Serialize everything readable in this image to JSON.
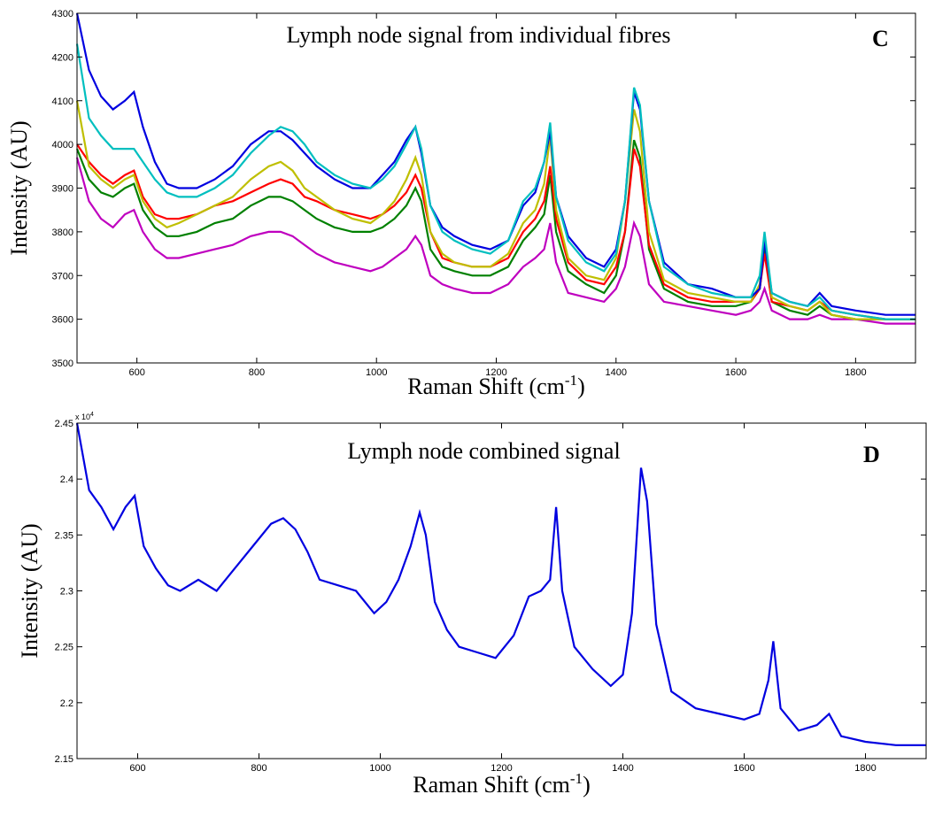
{
  "chart_data": [
    {
      "type": "line",
      "title": "Lymph node signal from individual fibres",
      "annotation": "C",
      "x_label": "Raman Shift (cm",
      "x_label_sup": "-1",
      "x_label_end": ")",
      "y_label": "Intensity (AU)",
      "xlim": [
        500,
        1900
      ],
      "xticks": [
        600,
        800,
        1000,
        1200,
        1400,
        1600,
        1800
      ],
      "ylim": [
        3500,
        4300
      ],
      "yticks": [
        3500,
        3600,
        3700,
        3800,
        3900,
        4000,
        4100,
        4200,
        4300
      ],
      "x": [
        500,
        520,
        540,
        560,
        580,
        595,
        610,
        630,
        650,
        670,
        700,
        730,
        760,
        790,
        820,
        840,
        860,
        880,
        900,
        930,
        960,
        990,
        1010,
        1030,
        1050,
        1065,
        1075,
        1090,
        1110,
        1130,
        1160,
        1190,
        1220,
        1245,
        1265,
        1280,
        1290,
        1300,
        1320,
        1350,
        1380,
        1400,
        1415,
        1430,
        1440,
        1455,
        1480,
        1520,
        1560,
        1600,
        1625,
        1640,
        1648,
        1660,
        1690,
        1720,
        1740,
        1760,
        1800,
        1850,
        1900
      ],
      "series": [
        {
          "color": "#bf00bf",
          "values": [
            3970,
            3870,
            3830,
            3810,
            3840,
            3850,
            3800,
            3760,
            3740,
            3740,
            3750,
            3760,
            3770,
            3790,
            3800,
            3800,
            3790,
            3770,
            3750,
            3730,
            3720,
            3710,
            3720,
            3740,
            3760,
            3790,
            3770,
            3700,
            3680,
            3670,
            3660,
            3660,
            3680,
            3720,
            3740,
            3760,
            3820,
            3730,
            3660,
            3650,
            3640,
            3670,
            3720,
            3820,
            3790,
            3680,
            3640,
            3630,
            3620,
            3610,
            3620,
            3640,
            3670,
            3620,
            3600,
            3600,
            3610,
            3600,
            3600,
            3590,
            3590
          ]
        },
        {
          "color": "#008000",
          "values": [
            3990,
            3920,
            3890,
            3880,
            3900,
            3910,
            3850,
            3810,
            3790,
            3790,
            3800,
            3820,
            3830,
            3860,
            3880,
            3880,
            3870,
            3850,
            3830,
            3810,
            3800,
            3800,
            3810,
            3830,
            3860,
            3900,
            3870,
            3760,
            3720,
            3710,
            3700,
            3700,
            3720,
            3780,
            3810,
            3840,
            3930,
            3800,
            3710,
            3680,
            3660,
            3700,
            3800,
            4010,
            3970,
            3760,
            3670,
            3640,
            3630,
            3630,
            3640,
            3670,
            3760,
            3640,
            3620,
            3610,
            3630,
            3610,
            3600,
            3600,
            3600
          ]
        },
        {
          "color": "#ff0000",
          "values": [
            4000,
            3960,
            3930,
            3910,
            3930,
            3940,
            3880,
            3840,
            3830,
            3830,
            3840,
            3860,
            3870,
            3890,
            3910,
            3920,
            3910,
            3880,
            3870,
            3850,
            3840,
            3830,
            3840,
            3860,
            3890,
            3930,
            3900,
            3800,
            3740,
            3730,
            3720,
            3720,
            3740,
            3800,
            3830,
            3870,
            3950,
            3830,
            3730,
            3690,
            3680,
            3720,
            3800,
            3990,
            3950,
            3770,
            3680,
            3650,
            3640,
            3640,
            3640,
            3670,
            3750,
            3640,
            3630,
            3620,
            3640,
            3620,
            3610,
            3600,
            3600
          ]
        },
        {
          "color": "#bfbf00",
          "values": [
            4100,
            3950,
            3920,
            3900,
            3920,
            3930,
            3870,
            3830,
            3810,
            3820,
            3840,
            3860,
            3880,
            3920,
            3950,
            3960,
            3940,
            3900,
            3880,
            3850,
            3830,
            3820,
            3840,
            3870,
            3920,
            3970,
            3930,
            3800,
            3750,
            3730,
            3720,
            3720,
            3750,
            3820,
            3850,
            3910,
            4020,
            3850,
            3740,
            3700,
            3690,
            3740,
            3870,
            4080,
            4030,
            3800,
            3690,
            3660,
            3650,
            3640,
            3640,
            3680,
            3790,
            3650,
            3630,
            3620,
            3640,
            3610,
            3600,
            3600,
            3600
          ]
        },
        {
          "color": "#0000e0",
          "values": [
            4300,
            4170,
            4110,
            4080,
            4100,
            4120,
            4040,
            3960,
            3910,
            3900,
            3900,
            3920,
            3950,
            4000,
            4030,
            4030,
            4010,
            3980,
            3950,
            3920,
            3900,
            3900,
            3930,
            3960,
            4010,
            4040,
            3980,
            3860,
            3810,
            3790,
            3770,
            3760,
            3780,
            3860,
            3890,
            3960,
            4030,
            3880,
            3790,
            3740,
            3720,
            3760,
            3870,
            4120,
            4080,
            3870,
            3730,
            3680,
            3670,
            3650,
            3650,
            3670,
            3780,
            3660,
            3640,
            3630,
            3660,
            3630,
            3620,
            3610,
            3610
          ]
        },
        {
          "color": "#00bfbf",
          "values": [
            4230,
            4060,
            4020,
            3990,
            3990,
            3990,
            3960,
            3920,
            3890,
            3880,
            3880,
            3900,
            3930,
            3980,
            4020,
            4040,
            4030,
            4000,
            3960,
            3930,
            3910,
            3900,
            3920,
            3950,
            4000,
            4040,
            3990,
            3860,
            3800,
            3780,
            3760,
            3750,
            3780,
            3870,
            3900,
            3960,
            4050,
            3880,
            3780,
            3730,
            3710,
            3750,
            3870,
            4130,
            4090,
            3870,
            3720,
            3680,
            3660,
            3650,
            3650,
            3700,
            3800,
            3660,
            3640,
            3630,
            3650,
            3620,
            3610,
            3600,
            3600
          ]
        }
      ]
    },
    {
      "type": "line",
      "title": "Lymph node combined signal",
      "annotation": "D",
      "x_label": "Raman Shift (cm",
      "x_label_sup": "-1",
      "x_label_end": ")",
      "y_label": "Intensity (AU)",
      "y_multiplier": "x 10",
      "y_multiplier_exp": "4",
      "xlim": [
        500,
        1900
      ],
      "xticks": [
        600,
        800,
        1000,
        1200,
        1400,
        1600,
        1800
      ],
      "ylim": [
        2.15,
        2.45
      ],
      "yticks": [
        2.15,
        2.2,
        2.25,
        2.3,
        2.35,
        2.4,
        2.45
      ],
      "x": [
        500,
        520,
        540,
        560,
        580,
        595,
        610,
        630,
        650,
        670,
        700,
        730,
        760,
        790,
        820,
        840,
        860,
        880,
        900,
        930,
        960,
        990,
        1010,
        1030,
        1050,
        1065,
        1075,
        1090,
        1110,
        1130,
        1160,
        1190,
        1220,
        1245,
        1265,
        1280,
        1290,
        1300,
        1320,
        1350,
        1380,
        1400,
        1415,
        1430,
        1440,
        1455,
        1480,
        1520,
        1560,
        1600,
        1625,
        1640,
        1648,
        1660,
        1690,
        1720,
        1740,
        1760,
        1800,
        1850,
        1900
      ],
      "series": [
        {
          "color": "#0000e0",
          "values": [
            2.45,
            2.39,
            2.375,
            2.355,
            2.375,
            2.385,
            2.34,
            2.32,
            2.305,
            2.3,
            2.31,
            2.3,
            2.32,
            2.34,
            2.36,
            2.365,
            2.355,
            2.335,
            2.31,
            2.305,
            2.3,
            2.28,
            2.29,
            2.31,
            2.34,
            2.37,
            2.35,
            2.29,
            2.265,
            2.25,
            2.245,
            2.24,
            2.26,
            2.295,
            2.3,
            2.31,
            2.375,
            2.3,
            2.25,
            2.23,
            2.215,
            2.225,
            2.28,
            2.41,
            2.38,
            2.27,
            2.21,
            2.195,
            2.19,
            2.185,
            2.19,
            2.22,
            2.255,
            2.195,
            2.175,
            2.18,
            2.19,
            2.17,
            2.165,
            2.162,
            2.162
          ]
        }
      ]
    }
  ]
}
